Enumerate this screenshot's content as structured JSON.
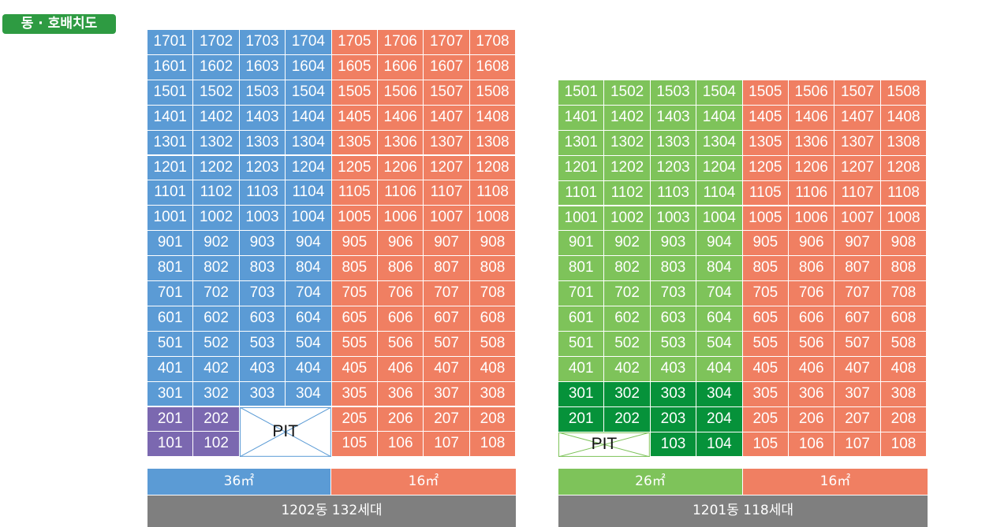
{
  "title": "동 · 호배치도",
  "colors": {
    "blue": "#5b9bd5",
    "orange": "#f07f62",
    "purple": "#7b68b0",
    "light_green": "#7ec35a",
    "dark_green": "#06923a",
    "pit_line": "#5b9bd5",
    "pit_line_green": "#7ec35a",
    "footer_gray": "#7f7f7f"
  },
  "building_a": {
    "floors": [
      "17",
      "16",
      "15",
      "14",
      "13",
      "12",
      "11",
      "10",
      "9",
      "8",
      "7",
      "6",
      "5",
      "4",
      "3",
      "2",
      "1"
    ],
    "pit_label": "PIT",
    "type_left": "36㎡",
    "type_right": "16㎡",
    "footer": "1202동 132세대"
  },
  "building_b": {
    "floors": [
      "15",
      "14",
      "13",
      "12",
      "11",
      "10",
      "9",
      "8",
      "7",
      "6",
      "5",
      "4",
      "3",
      "2",
      "1"
    ],
    "pit_label": "PIT",
    "type_left": "26㎡",
    "type_right": "16㎡",
    "footer": "1201동 118세대"
  }
}
